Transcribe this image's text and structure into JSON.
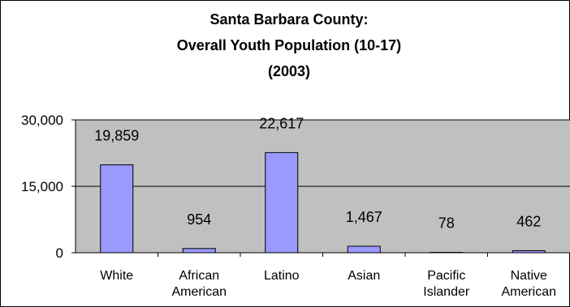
{
  "chart_data": {
    "type": "bar",
    "title_lines": [
      "Santa Barbara  County:",
      "Overall Youth Population (10-17)",
      "(2003)"
    ],
    "categories": [
      [
        "White"
      ],
      [
        "African",
        "American"
      ],
      [
        "Latino"
      ],
      [
        "Asian"
      ],
      [
        "Pacific",
        "Islander"
      ],
      [
        "Native",
        "American"
      ]
    ],
    "values": [
      19859,
      954,
      22617,
      1467,
      78,
      462
    ],
    "value_labels": [
      "19,859",
      "954",
      "22,617",
      "1,467",
      "78",
      "462"
    ],
    "yticks": [
      0,
      15000,
      30000
    ],
    "ytick_labels": [
      "0",
      "15,000",
      "30,000"
    ],
    "ylim": [
      0,
      30000
    ],
    "grid": true,
    "legend": false,
    "colors": {
      "bar": "#9999ff",
      "plot_bg": "#c0c0c0",
      "bar_stroke": "#000000"
    }
  }
}
